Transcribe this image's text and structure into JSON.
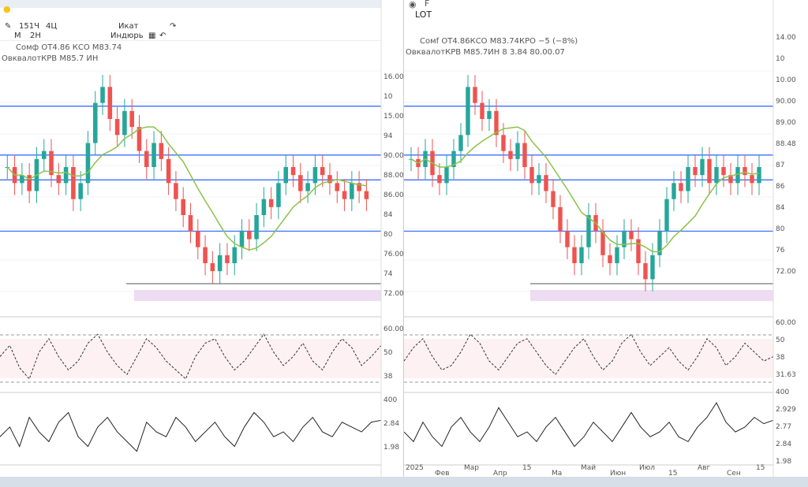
{
  "left": {
    "toolbar": [
      "151Ч",
      "4Ц",
      "Икат",
      "М",
      "2Н",
      "Индюрь"
    ],
    "legend": [
      "Сомф ОТ4.86 КСО М83.74",
      "ОвквалотКРВ М85.7 ИН"
    ],
    "axis": [
      "16.00",
      "10",
      "15.00",
      "94",
      "90.00",
      "88.00",
      "86.00",
      "84",
      "80",
      "76.00",
      "74",
      "72.00"
    ],
    "osc_axis": [
      "60.00",
      "50",
      "38",
      "400",
      "2.84",
      "1.98"
    ]
  },
  "right": {
    "title": "LOT",
    "search_label": "F",
    "legend": [
      "Сомf ОТ4.86КСО М83.74КРО −5 (−8%)",
      "ОвквалотКРВ М85.7ИН 8 3.84 80.00.07"
    ],
    "axis": [
      "14.00",
      "10",
      "10.00",
      "90.00",
      "89.00",
      "88.48",
      "87",
      "86",
      "84",
      "80",
      "76",
      "72.00"
    ],
    "osc_axis": [
      "60.00",
      "50",
      "38",
      "31.63",
      "400",
      "2.929",
      "2.77",
      "2.84",
      "1.98"
    ],
    "time_axis": [
      "2025",
      "Фев",
      "Мар",
      "Апр",
      "15",
      "Ма",
      "Май",
      "Июн",
      "Июл",
      "15",
      "Авг",
      "Сен",
      "15"
    ]
  },
  "colors": {
    "up": "#26a69a",
    "down": "#ef5350",
    "level": "#2962ff",
    "purple": "#9c27b0",
    "ma1": "#8bc34a",
    "ma2": "#4dd0e1",
    "ma3": "#f48fb1"
  },
  "chart_data": [
    {
      "type": "candlestick",
      "pane": "left",
      "ylim": [
        70,
        100
      ],
      "close": [
        88,
        86,
        87,
        85,
        89,
        90,
        87,
        86,
        88,
        84,
        86,
        91,
        96,
        98,
        94,
        92,
        95,
        93,
        90,
        88,
        91,
        89,
        86,
        84,
        82,
        80,
        78,
        76,
        75,
        77,
        76,
        78,
        80,
        79,
        82,
        84,
        83,
        86,
        88,
        87,
        85,
        86,
        88,
        87,
        86,
        85,
        84,
        86,
        85,
        84
      ],
      "levels": [
        95.6,
        89.5,
        86.4,
        80.0
      ],
      "osc1": [
        50,
        55,
        45,
        40,
        52,
        58,
        50,
        44,
        48,
        56,
        60,
        52,
        46,
        42,
        50,
        58,
        54,
        48,
        44,
        40,
        50,
        56,
        58,
        50,
        44,
        48,
        54,
        60,
        52,
        46,
        50,
        56,
        48,
        44,
        52,
        58,
        54,
        46,
        50,
        55
      ],
      "osc2": [
        2.5,
        2.7,
        2.3,
        2.9,
        2.6,
        2.4,
        2.8,
        3.0,
        2.5,
        2.3,
        2.7,
        2.9,
        2.6,
        2.4,
        2.2,
        2.8,
        2.6,
        2.5,
        2.9,
        2.7,
        2.4,
        2.6,
        2.8,
        2.5,
        2.3,
        2.7,
        3.0,
        2.8,
        2.5,
        2.6,
        2.4,
        2.7,
        2.9,
        2.6,
        2.5,
        2.8,
        2.7,
        2.6,
        2.8,
        2.84
      ]
    },
    {
      "type": "candlestick",
      "pane": "right",
      "ylim": [
        70,
        100
      ],
      "close": [
        89,
        88,
        90,
        87,
        86,
        88,
        90,
        92,
        98,
        96,
        94,
        95,
        92,
        90,
        89,
        91,
        88,
        86,
        87,
        85,
        83,
        80,
        78,
        76,
        78,
        82,
        80,
        77,
        76,
        78,
        80,
        79,
        76,
        74,
        77,
        80,
        84,
        86,
        85,
        88,
        87,
        89,
        86,
        88,
        87,
        86,
        88,
        87,
        86,
        88
      ],
      "levels": [
        95.6,
        89.5,
        86.4,
        80.0
      ],
      "osc1": [
        48,
        54,
        58,
        50,
        44,
        46,
        52,
        60,
        56,
        48,
        44,
        50,
        56,
        58,
        52,
        46,
        42,
        48,
        54,
        58,
        50,
        44,
        48,
        56,
        60,
        52,
        46,
        50,
        54,
        48,
        44,
        50,
        58,
        54,
        46,
        50,
        56,
        52,
        48,
        50
      ],
      "osc2": [
        2.6,
        2.4,
        2.8,
        2.5,
        2.3,
        2.7,
        2.9,
        2.6,
        2.4,
        2.7,
        3.1,
        2.8,
        2.5,
        2.6,
        2.4,
        2.7,
        2.9,
        2.6,
        2.3,
        2.5,
        2.8,
        2.6,
        2.4,
        2.7,
        3.0,
        2.7,
        2.5,
        2.6,
        2.8,
        2.5,
        2.4,
        2.7,
        2.9,
        3.2,
        2.8,
        2.6,
        2.7,
        2.9,
        2.77,
        2.84
      ]
    }
  ]
}
